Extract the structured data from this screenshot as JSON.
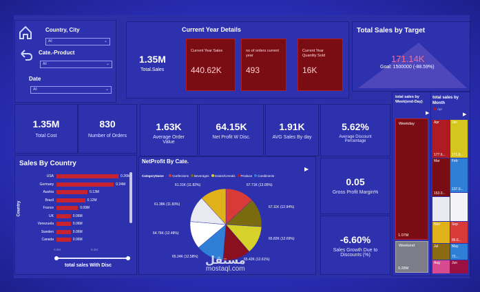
{
  "slicers": {
    "country_label": "Country, City",
    "country_value": "All",
    "cate_label": "Cate.-Product",
    "cate_value": "All",
    "date_label": "Date",
    "date_value": "All"
  },
  "current_year": {
    "title": "Current Year Details",
    "total_sales_value": "1.35M",
    "total_sales_label": "Total.Sales",
    "boxes": [
      {
        "label": "Current Year Sales",
        "value": "440.62K"
      },
      {
        "label": "no of orders current year",
        "value": "493"
      },
      {
        "label": "Current Year Quantity Sold",
        "value": "16K"
      }
    ]
  },
  "target": {
    "title": "Total Sales by Target",
    "value": "171.14K",
    "goal": "Goal: 1500000 (-88.59%)"
  },
  "kpis": [
    {
      "value": "1.35M",
      "label": "Total Cost"
    },
    {
      "value": "830",
      "label": "Number of Orders"
    },
    {
      "value": "1.63K",
      "label": "Average Order Value"
    },
    {
      "value": "64.15K",
      "label": "Net Profit W Disc."
    },
    {
      "value": "1.91K",
      "label": "AVG Sales By day"
    },
    {
      "value": "5.62%",
      "label": "Average Discount Percentage"
    }
  ],
  "side_kpis": [
    {
      "value": "0.05",
      "label": "Gross Profit Margin%"
    },
    {
      "value": "-6.60%",
      "label": "Sales Growth Due to Discounts (%)"
    }
  ],
  "sales_by_country": {
    "title": "Sales By Country",
    "y_label": "Country",
    "x_label": "total sales With Disc",
    "tick_0": "0.0M",
    "tick_1": "0.2M",
    "chart_data": {
      "type": "bar",
      "categories": [
        "USA",
        "Germany",
        "Austria",
        "Brazil",
        "France",
        "UK",
        "Venezuela",
        "Sweden",
        "Canada"
      ],
      "values": [
        0.26,
        0.24,
        0.13,
        0.12,
        0.09,
        0.06,
        0.06,
        0.06,
        0.06
      ],
      "labels": [
        "0.26M",
        "0.24M",
        "0.13M",
        "0.12M",
        "0.09M",
        "0.06M",
        "0.06M",
        "0.06M",
        "0.06M"
      ],
      "xlim": [
        0,
        0.3
      ]
    }
  },
  "net_profit": {
    "title": "NetProfit By Cate.",
    "legend_title": "CategoryName",
    "legend": [
      {
        "name": "Confections",
        "color": "#d83a3a"
      },
      {
        "name": "Beverages",
        "color": "#7a6a10"
      },
      {
        "name": "Grains/Cereals",
        "color": "#d7d22a"
      },
      {
        "name": "Produce",
        "color": "#b0182a"
      },
      {
        "name": "Condiments",
        "color": "#2f7fd6"
      }
    ],
    "chart_data": {
      "type": "pie",
      "slices": [
        {
          "label": "67.71K (13.05%)",
          "value": 13.05,
          "color": "#d83a3a"
        },
        {
          "label": "67.11K (12.94%)",
          "value": 12.94,
          "color": "#7a6a10"
        },
        {
          "label": "65.82K (12.69%)",
          "value": 12.69,
          "color": "#d7d22a"
        },
        {
          "label": "65.42K (12.61%)",
          "value": 12.61,
          "color": "#8a1020"
        },
        {
          "label": "65.24K (12.58%)",
          "value": 12.58,
          "color": "#2f7fd6"
        },
        {
          "label": "64.76K (12.48%)",
          "value": 12.48,
          "color": "#ffffff"
        },
        {
          "label": "61.38K (11.83%)",
          "value": 11.83,
          "color": "#e9e9f2"
        },
        {
          "label": "61.31K (11.82%)",
          "value": 11.82,
          "color": "#e0b21a"
        }
      ]
    }
  },
  "weekday_chart": {
    "title": "total sales by Week(end-Day)",
    "weekday_label": "Weekday",
    "weekday_value": "1.07M",
    "weekend_label": "Weekend",
    "weekend_value": "0.28M"
  },
  "month_chart": {
    "title": "total sales by Month",
    "legend_item": "Apr",
    "cells": [
      {
        "label": "Apr",
        "value": "177.6...",
        "color": "#b01a22"
      },
      {
        "label": "Jan",
        "value": "171.8...",
        "color": "#d4c61e"
      },
      {
        "label": "Mar",
        "value": "153.0...",
        "color": "#7a0d14"
      },
      {
        "label": "Feb",
        "value": "137.0...",
        "color": "#2f7fd6"
      },
      {
        "label": "",
        "value": "",
        "color": "#e9e9f2"
      },
      {
        "label": "Nov",
        "value": "",
        "color": "#e0b21a"
      },
      {
        "label": "Sep",
        "value": "",
        "color": "#d83a3a"
      },
      {
        "label": "Jul",
        "value": "",
        "color": "#8a6a12"
      },
      {
        "label": "May",
        "value": "",
        "color": "#2f7fd6"
      },
      {
        "label": "Aug",
        "value": "",
        "color": "#d84a90"
      },
      {
        "label": "Jun",
        "value": "",
        "color": "#9a1040"
      }
    ],
    "extra_values": [
      "86.6...",
      "72..."
    ]
  },
  "watermark": {
    "arabic": "مستقل",
    "latin": "mostaql.com"
  }
}
